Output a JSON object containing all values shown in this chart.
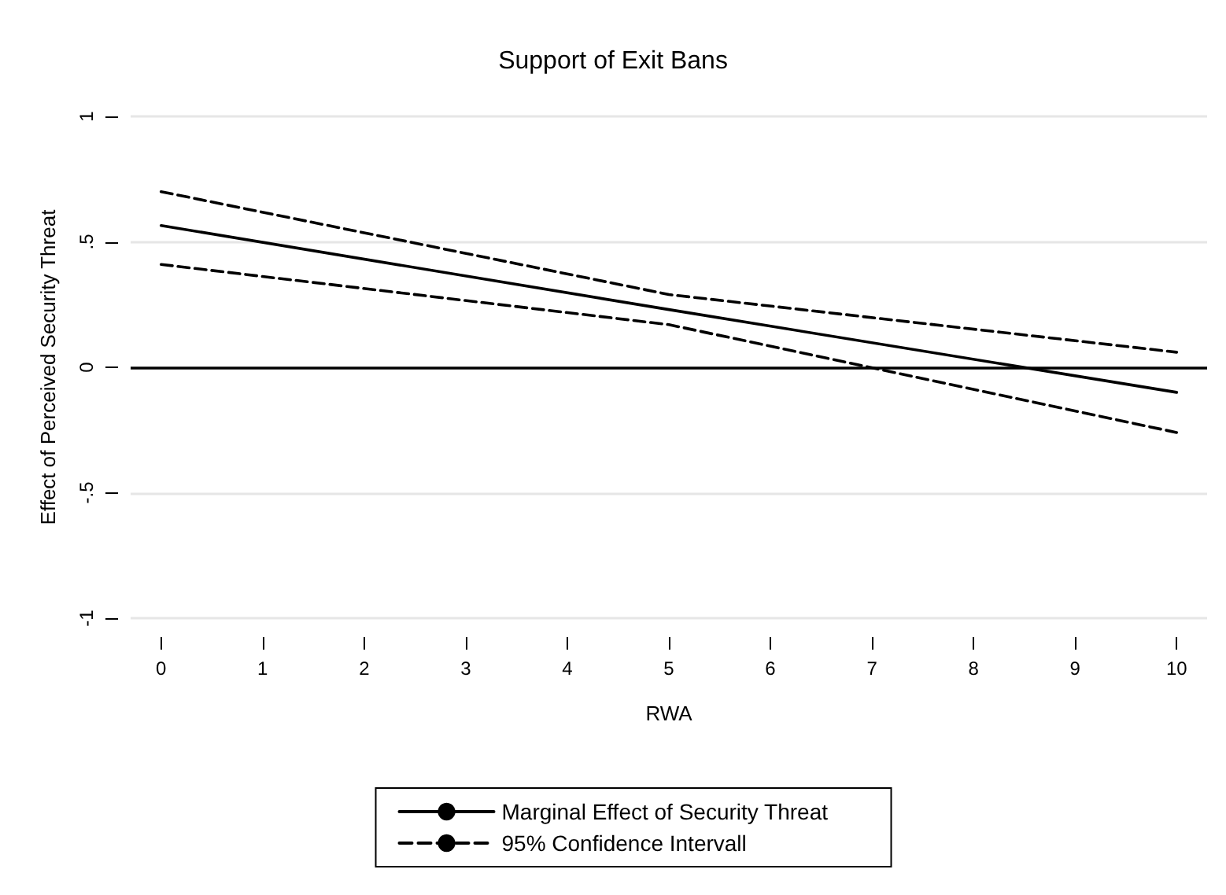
{
  "chart_data": {
    "type": "line",
    "title": "Support of Exit Bans",
    "xlabel": "RWA",
    "ylabel": "Effect of Perceived Security Threat",
    "x": [
      0,
      5,
      10
    ],
    "series": [
      {
        "name": "Marginal Effect of Security Threat",
        "color": "#000000",
        "line_style": "solid",
        "values": [
          0.565,
          0.23,
          -0.1
        ]
      },
      {
        "name": "95% Confidence Intervall",
        "color": "#000000",
        "line_style": "dashed",
        "values": [
          0.7,
          0.29,
          0.06
        ]
      },
      {
        "color": "#000000",
        "line_style": "dashed",
        "values": [
          0.41,
          0.17,
          -0.26
        ]
      }
    ],
    "xlim": [
      -0.3,
      10.3
    ],
    "ylim": [
      -1,
      1
    ],
    "xticks": [
      0,
      1,
      2,
      3,
      4,
      5,
      6,
      7,
      8,
      9,
      10
    ],
    "yticks": [
      {
        "value": -1,
        "label": "-1"
      },
      {
        "value": -0.5,
        "label": "-.5"
      },
      0,
      {
        "value": 0.5,
        "label": ".5"
      },
      1
    ],
    "grid": "y",
    "legend": "bottom",
    "marker": "none",
    "ref_lines": [
      {
        "axis": "y",
        "value": 0,
        "color": "#000000"
      }
    ]
  }
}
